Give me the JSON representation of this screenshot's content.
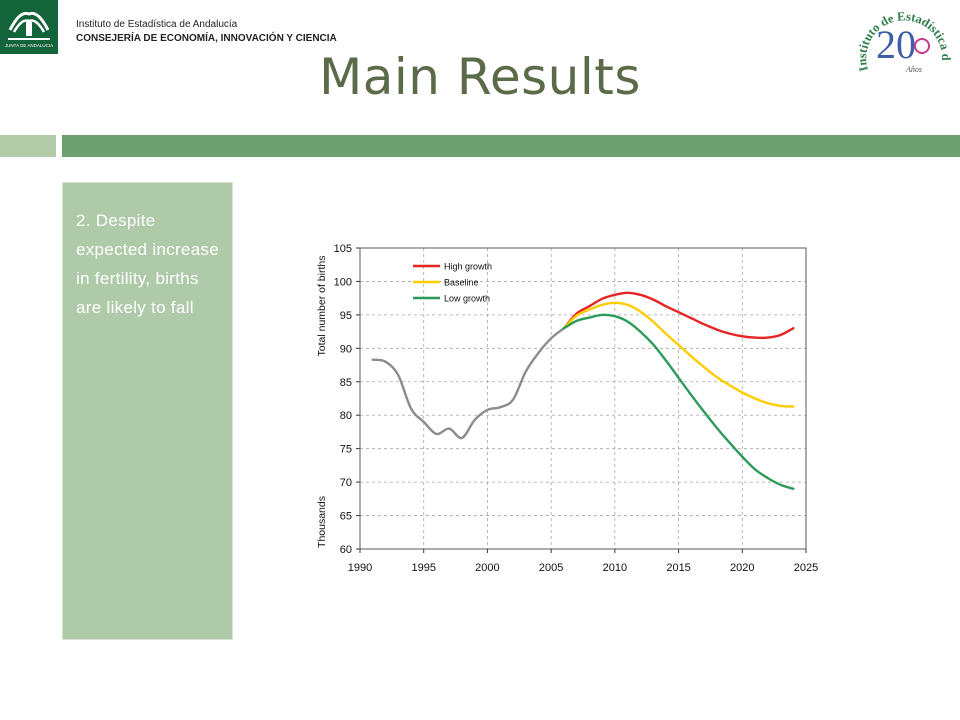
{
  "header": {
    "org_line1": "Instituto de Estadística de Andalucía",
    "org_line2": "CONSEJERÍA DE ECONOMÍA, INNOVACIÓN Y CIENCIA",
    "junta_logo_text": "JUNTA DE ANDALUCIA",
    "anniversary_logo_text": "Instituto de Estadística de Andalucía",
    "anniversary_number": "20",
    "anniversary_word": "Años"
  },
  "slide": {
    "title": "Main Results",
    "bullet": "2. Despite expected increase in fertility, births are likely to fall"
  },
  "colors": {
    "title": "#5b6a48",
    "band_dark": "#6fa06f",
    "band_light": "#b3cba8",
    "panel": "#aecaa8",
    "high_growth": "#e52521",
    "baseline": "#ffcc00",
    "low_growth": "#2e9a5a",
    "historical": "#8c8c8c"
  },
  "chart_data": {
    "type": "line",
    "ylabel": "Total number of births",
    "yunit": "Thousands",
    "xlim": [
      1990,
      2025
    ],
    "ylim": [
      60,
      105
    ],
    "xticks": [
      1990,
      1995,
      2000,
      2005,
      2010,
      2015,
      2020,
      2025
    ],
    "yticks": [
      60,
      65,
      70,
      75,
      80,
      85,
      90,
      95,
      100,
      105
    ],
    "grid": true,
    "legend_position": "top-left",
    "series": [
      {
        "name": "",
        "color": "#8c8c8c",
        "x": [
          1991,
          1992,
          1993,
          1994,
          1995,
          1996,
          1997,
          1998,
          1999,
          2000,
          2001,
          2002,
          2003,
          2004,
          2005,
          2006
        ],
        "y": [
          88.3,
          88.0,
          86.0,
          81.0,
          79.0,
          77.2,
          78.0,
          76.6,
          79.3,
          80.8,
          81.2,
          82.3,
          86.5,
          89.3,
          91.5,
          93.0
        ]
      },
      {
        "name": "High growth",
        "color": "#e52521",
        "x": [
          2006,
          2007,
          2008,
          2009,
          2010,
          2011,
          2012,
          2013,
          2014,
          2015,
          2016,
          2017,
          2018,
          2019,
          2020,
          2021,
          2022,
          2023,
          2024
        ],
        "y": [
          93.0,
          95.2,
          96.3,
          97.4,
          98.0,
          98.3,
          98.0,
          97.3,
          96.3,
          95.4,
          94.5,
          93.6,
          92.8,
          92.2,
          91.8,
          91.6,
          91.6,
          92.0,
          93.0
        ]
      },
      {
        "name": "Baseline",
        "color": "#ffcc00",
        "x": [
          2006,
          2007,
          2008,
          2009,
          2010,
          2011,
          2012,
          2013,
          2014,
          2015,
          2016,
          2017,
          2018,
          2019,
          2020,
          2021,
          2022,
          2023,
          2024
        ],
        "y": [
          93.0,
          94.9,
          95.8,
          96.5,
          96.8,
          96.5,
          95.5,
          94.0,
          92.2,
          90.5,
          88.8,
          87.2,
          85.7,
          84.5,
          83.4,
          82.5,
          81.8,
          81.4,
          81.3
        ]
      },
      {
        "name": "Low growth",
        "color": "#2e9a5a",
        "x": [
          2006,
          2007,
          2008,
          2009,
          2010,
          2011,
          2012,
          2013,
          2014,
          2015,
          2016,
          2017,
          2018,
          2019,
          2020,
          2021,
          2022,
          2023,
          2024
        ],
        "y": [
          93.0,
          94.1,
          94.6,
          95.0,
          94.8,
          94.0,
          92.5,
          90.6,
          88.2,
          85.6,
          83.0,
          80.5,
          78.1,
          75.9,
          73.8,
          71.9,
          70.6,
          69.6,
          69.0
        ]
      }
    ]
  }
}
